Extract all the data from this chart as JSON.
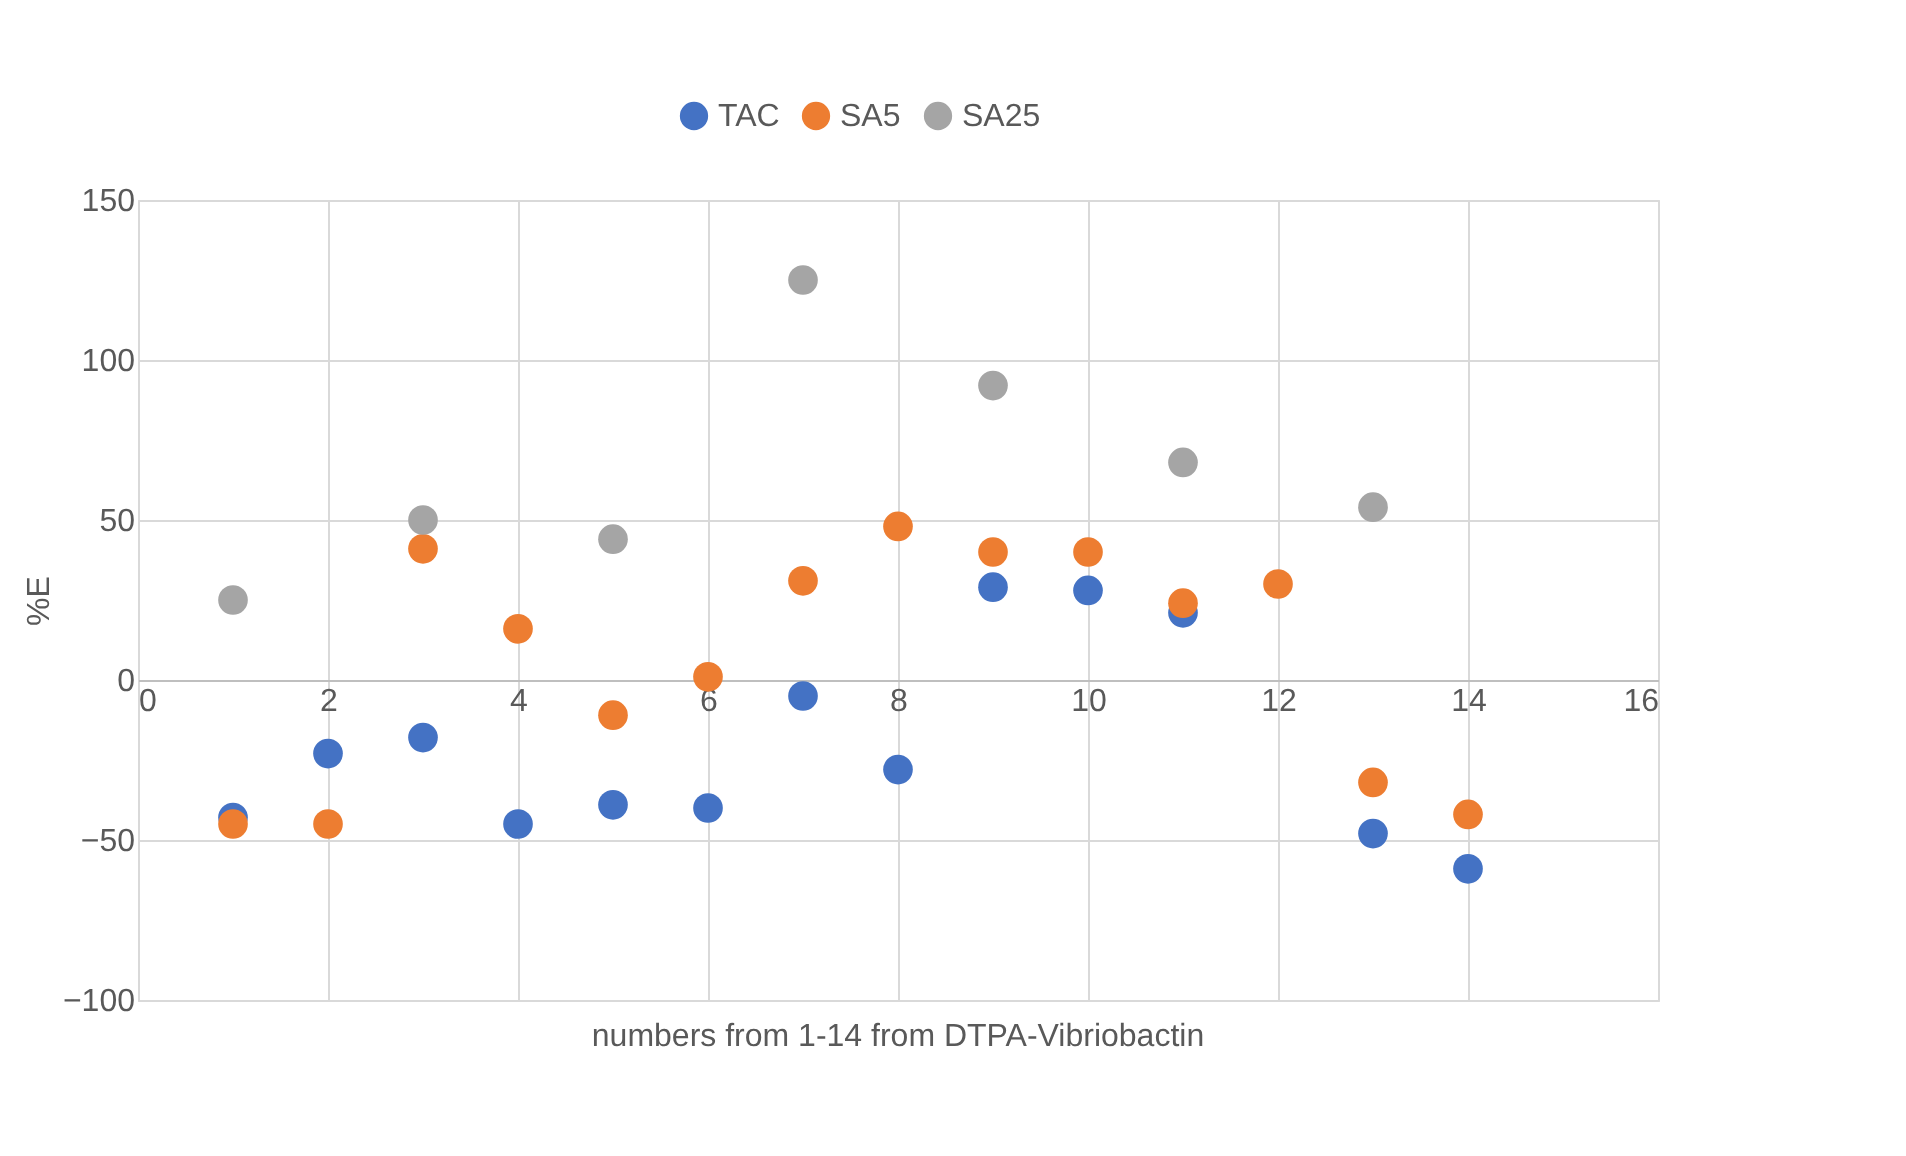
{
  "chart_data": {
    "type": "scatter",
    "xlabel": "numbers from 1-14 from DTPA-Vibriobactin",
    "ylabel": "%E",
    "xlim": [
      0,
      16
    ],
    "xticks": [
      0,
      2,
      4,
      6,
      8,
      10,
      12,
      14,
      16
    ],
    "ylim": [
      -100,
      150
    ],
    "yticks": [
      -100,
      -50,
      0,
      50,
      100,
      150
    ],
    "grid": true,
    "legend": "top",
    "marker": "circle",
    "series": [
      {
        "name": "TAC",
        "color": "#4472c4",
        "x": [
          1,
          2,
          3,
          4,
          5,
          6,
          7,
          8,
          9,
          10,
          11,
          13,
          14
        ],
        "values": [
          -43,
          -23,
          -18,
          -45,
          -39,
          -40,
          -5,
          -28,
          29,
          28,
          21,
          -48,
          -59
        ]
      },
      {
        "name": "SA5",
        "color": "#ed7d31",
        "x": [
          1,
          2,
          3,
          4,
          5,
          6,
          7,
          8,
          9,
          10,
          11,
          12,
          13,
          14
        ],
        "values": [
          -45,
          -45,
          41,
          16,
          -11,
          1,
          31,
          48,
          40,
          40,
          24,
          30,
          -32,
          -42
        ]
      },
      {
        "name": "SA25",
        "color": "#a5a5a5",
        "x": [
          1,
          3,
          5,
          7,
          9,
          11,
          13
        ],
        "values": [
          25,
          50,
          44,
          125,
          92,
          68,
          54
        ]
      }
    ]
  }
}
